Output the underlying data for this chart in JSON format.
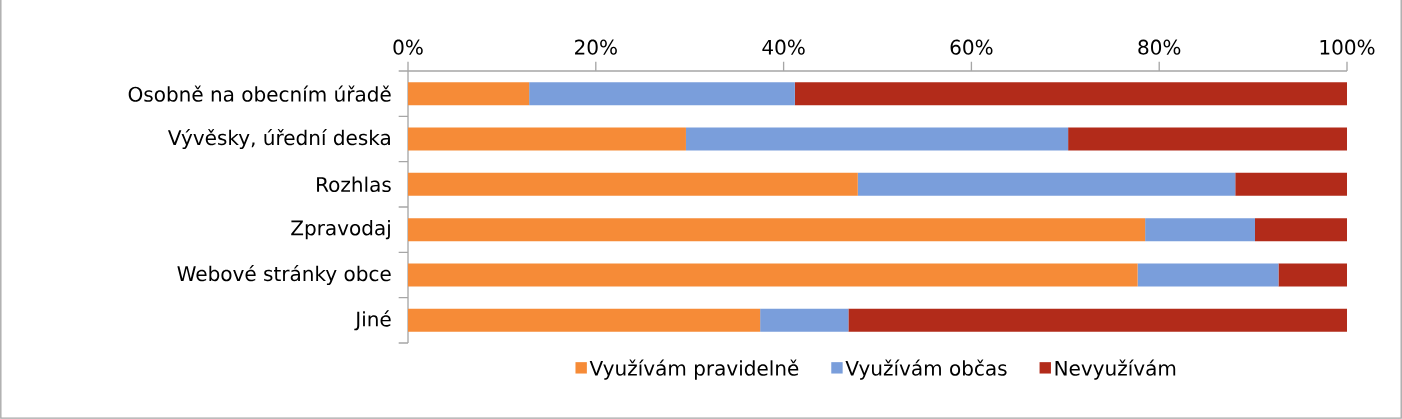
{
  "chart_data": {
    "type": "bar",
    "orientation": "horizontal",
    "stacked": true,
    "categories": [
      "Osobně na obecním úřadě",
      "Vývěsky, úřední deska",
      "Rozhlas",
      "Zpravodaj",
      "Webové stránky obce",
      "Jiné"
    ],
    "series": [
      {
        "name": "Využívám pravidelně",
        "color": "#f68b37",
        "values": [
          12.9,
          29.6,
          47.9,
          78.5,
          77.7,
          37.5
        ]
      },
      {
        "name": "Využívám občas",
        "color": "#7a9edb",
        "values": [
          28.3,
          40.7,
          40.2,
          11.7,
          15.0,
          9.4
        ]
      },
      {
        "name": "Nevyužívám",
        "color": "#b22b1a",
        "values": [
          58.8,
          29.7,
          11.9,
          9.8,
          7.3,
          53.1
        ]
      }
    ],
    "xlim": [
      0,
      100
    ],
    "xticks": [
      {
        "value": 0,
        "label": "0%"
      },
      {
        "value": 20,
        "label": "20%"
      },
      {
        "value": 40,
        "label": "40%"
      },
      {
        "value": 60,
        "label": "60%"
      },
      {
        "value": 80,
        "label": "80%"
      },
      {
        "value": 100,
        "label": "100%"
      }
    ],
    "legend": "bottom"
  }
}
